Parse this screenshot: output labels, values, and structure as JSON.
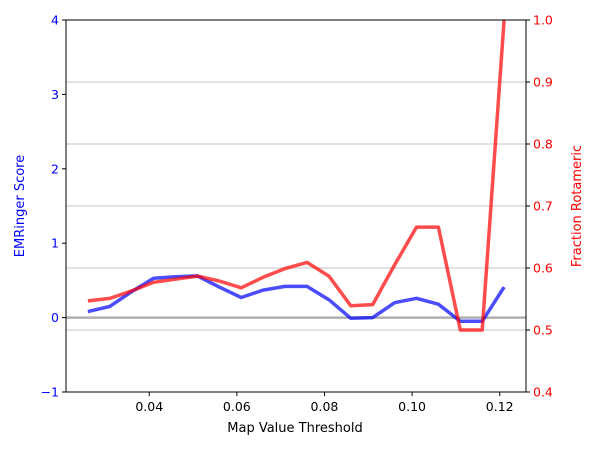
{
  "chart_data": {
    "type": "line",
    "title": "",
    "xlabel": "Map Value Threshold",
    "xlim": [
      0.021,
      0.126
    ],
    "x_ticks": [
      "0.04",
      "0.06",
      "0.08",
      "0.10",
      "0.12"
    ],
    "left_axis": {
      "label": "EMRinger Score",
      "color": "#0000ff",
      "ylim": [
        -1,
        4
      ],
      "ticks": [
        "−1",
        "0",
        "1",
        "2",
        "3",
        "4"
      ]
    },
    "right_axis": {
      "label": "Fraction Rotameric",
      "color": "#ff0000",
      "ylim": [
        0.4,
        1.0
      ],
      "ticks": [
        "0.4",
        "0.5",
        "0.6",
        "0.7",
        "0.8",
        "0.9",
        "1.0"
      ]
    },
    "grid": "right-axis horizontal gridlines",
    "reference_line": {
      "axis": "left",
      "y": 0,
      "color": "#b0b0b0"
    },
    "series": [
      {
        "axis": "left",
        "color": "#0000ff",
        "x": [
          0.026,
          0.031,
          0.036,
          0.041,
          0.046,
          0.051,
          0.056,
          0.061,
          0.066,
          0.071,
          0.076,
          0.081,
          0.086,
          0.091,
          0.096,
          0.101,
          0.106,
          0.111,
          0.116,
          0.121
        ],
        "values": [
          0.08,
          0.15,
          0.35,
          0.53,
          0.55,
          0.56,
          0.41,
          0.27,
          0.37,
          0.42,
          0.42,
          0.24,
          -0.01,
          0.0,
          0.2,
          0.26,
          0.18,
          -0.05,
          -0.05,
          0.41
        ]
      },
      {
        "axis": "right",
        "color": "#ff0000",
        "x": [
          0.026,
          0.031,
          0.036,
          0.041,
          0.046,
          0.051,
          0.056,
          0.061,
          0.066,
          0.071,
          0.076,
          0.081,
          0.086,
          0.091,
          0.096,
          0.101,
          0.106,
          0.111,
          0.116,
          0.121
        ],
        "values": [
          0.547,
          0.551,
          0.563,
          0.577,
          0.582,
          0.587,
          0.579,
          0.568,
          0.585,
          0.599,
          0.609,
          0.587,
          0.539,
          0.541,
          0.605,
          0.666,
          0.666,
          0.5,
          0.5,
          1.0
        ]
      }
    ]
  }
}
